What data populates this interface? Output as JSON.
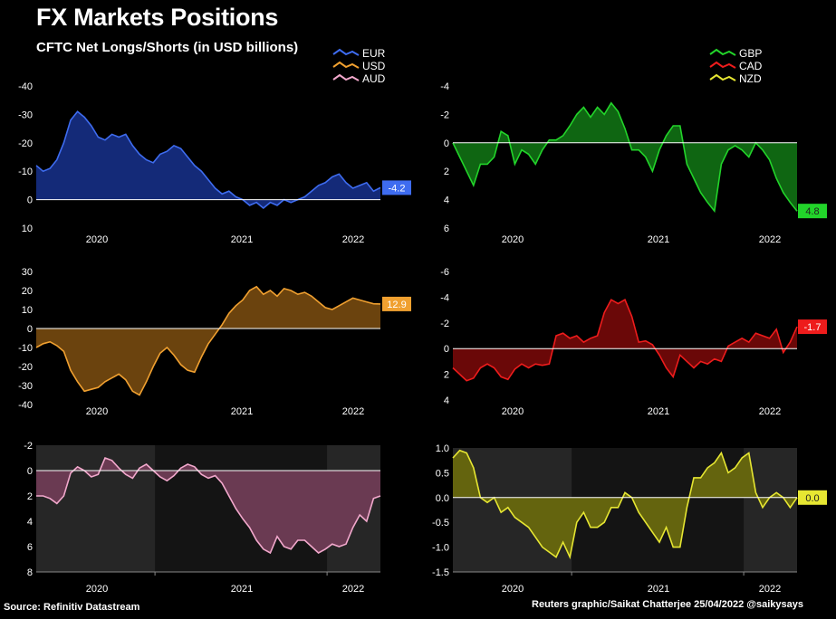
{
  "header": {
    "title": "FX Markets Positions",
    "subtitle": "CFTC Net Longs/Shorts (in USD billions)"
  },
  "footer": {
    "source": "Source: Refinitiv Datastream",
    "credit": "Reuters graphic/Saikat Chatterjee 25/04/2022 @saikysays"
  },
  "chart_data": [
    {
      "type": "area",
      "series_name": "EUR",
      "color": "#3e6cf0",
      "fill": "#142a78",
      "legend": [
        "EUR",
        "USD",
        "AUD"
      ],
      "legend_colors": [
        "#3e6cf0",
        "#f0a030",
        "#f2a8cc"
      ],
      "x_ticks": [
        "2020",
        "2021",
        "2022"
      ],
      "y_range": [
        -40,
        10
      ],
      "y_ticks": [
        -40,
        -30,
        -20,
        -10,
        0,
        10
      ],
      "inverted": true,
      "last_label": "-4.2",
      "shaded": false,
      "x": [
        0,
        0.02,
        0.04,
        0.06,
        0.08,
        0.1,
        0.12,
        0.14,
        0.16,
        0.18,
        0.2,
        0.22,
        0.24,
        0.26,
        0.28,
        0.3,
        0.32,
        0.34,
        0.36,
        0.38,
        0.4,
        0.42,
        0.44,
        0.46,
        0.48,
        0.5,
        0.52,
        0.54,
        0.56,
        0.58,
        0.6,
        0.62,
        0.64,
        0.66,
        0.68,
        0.7,
        0.72,
        0.74,
        0.76,
        0.78,
        0.8,
        0.82,
        0.84,
        0.86,
        0.88,
        0.9,
        0.92,
        0.94,
        0.96,
        0.98,
        1
      ],
      "values": [
        -12,
        -10,
        -11,
        -14,
        -20,
        -28,
        -31,
        -29,
        -26,
        -22,
        -21,
        -23,
        -22,
        -23,
        -19,
        -16,
        -14,
        -13,
        -16,
        -17,
        -19,
        -18,
        -15,
        -12,
        -10,
        -7,
        -4,
        -2,
        -3,
        -1,
        0,
        2,
        1,
        3,
        1,
        2,
        0,
        1,
        0,
        -1,
        -3,
        -5,
        -6,
        -8,
        -9,
        -6,
        -4,
        -5,
        -6,
        -3,
        -4.2
      ]
    },
    {
      "type": "area",
      "series_name": "GBP",
      "color": "#22d42a",
      "fill": "#0f6612",
      "legend": [
        "GBP",
        "CAD",
        "NZD"
      ],
      "legend_colors": [
        "#22d42a",
        "#ee1c1c",
        "#e6e632"
      ],
      "x_ticks": [
        "2020",
        "2021",
        "2022"
      ],
      "y_range": [
        -4,
        6
      ],
      "y_ticks": [
        -4,
        -2,
        0,
        2,
        4,
        6
      ],
      "inverted": true,
      "last_label": "4.8",
      "shaded": false,
      "x": [
        0,
        0.02,
        0.04,
        0.06,
        0.08,
        0.1,
        0.12,
        0.14,
        0.16,
        0.18,
        0.2,
        0.22,
        0.24,
        0.26,
        0.28,
        0.3,
        0.32,
        0.34,
        0.36,
        0.38,
        0.4,
        0.42,
        0.44,
        0.46,
        0.48,
        0.5,
        0.52,
        0.54,
        0.56,
        0.58,
        0.6,
        0.62,
        0.64,
        0.66,
        0.68,
        0.7,
        0.72,
        0.74,
        0.76,
        0.78,
        0.8,
        0.82,
        0.84,
        0.86,
        0.88,
        0.9,
        0.92,
        0.94,
        0.96,
        0.98,
        1
      ],
      "values": [
        0,
        1,
        2,
        3,
        1.5,
        1.5,
        1,
        -0.8,
        -0.5,
        1.5,
        0.5,
        0.8,
        1.5,
        0.5,
        -0.2,
        -0.2,
        -0.5,
        -1.2,
        -2,
        -2.5,
        -1.8,
        -2.5,
        -2,
        -2.8,
        -2.2,
        -1,
        0.5,
        0.5,
        1,
        2,
        0.5,
        -0.5,
        -1.2,
        -1.2,
        1.5,
        2.5,
        3.5,
        4.2,
        4.8,
        1.5,
        0.5,
        0.2,
        0.5,
        1,
        0,
        0.5,
        1.2,
        2.5,
        3.5,
        4.2,
        4.8
      ]
    },
    {
      "type": "area",
      "series_name": "USD",
      "color": "#f0a030",
      "fill": "#6b430e",
      "x_ticks": [
        "2020",
        "2021",
        "2022"
      ],
      "y_range": [
        -40,
        30
      ],
      "y_ticks": [
        30,
        20,
        10,
        0,
        -10,
        -20,
        -30,
        -40
      ],
      "inverted": false,
      "last_label": "12.9",
      "shaded": false,
      "x": [
        0,
        0.02,
        0.04,
        0.06,
        0.08,
        0.1,
        0.12,
        0.14,
        0.16,
        0.18,
        0.2,
        0.22,
        0.24,
        0.26,
        0.28,
        0.3,
        0.32,
        0.34,
        0.36,
        0.38,
        0.4,
        0.42,
        0.44,
        0.46,
        0.48,
        0.5,
        0.52,
        0.54,
        0.56,
        0.58,
        0.6,
        0.62,
        0.64,
        0.66,
        0.68,
        0.7,
        0.72,
        0.74,
        0.76,
        0.78,
        0.8,
        0.82,
        0.84,
        0.86,
        0.88,
        0.9,
        0.92,
        0.94,
        0.96,
        0.98,
        1
      ],
      "values": [
        -10,
        -8,
        -7,
        -9,
        -12,
        -22,
        -28,
        -33,
        -32,
        -31,
        -28,
        -26,
        -24,
        -27,
        -33,
        -35,
        -28,
        -20,
        -13,
        -10,
        -14,
        -19,
        -22,
        -23,
        -15,
        -8,
        -3,
        2,
        8,
        12,
        15,
        20,
        22,
        18,
        20,
        17,
        21,
        20,
        18,
        19,
        17,
        14,
        11,
        10,
        12,
        14,
        16,
        15,
        14,
        13,
        12.9
      ]
    },
    {
      "type": "area",
      "series_name": "CAD",
      "color": "#ee1c1c",
      "fill": "#6a0808",
      "x_ticks": [
        "2020",
        "2021",
        "2022"
      ],
      "y_range": [
        -6,
        4
      ],
      "y_ticks": [
        -6,
        -4,
        -2,
        0,
        2,
        4
      ],
      "inverted": true,
      "last_label": "-1.7",
      "shaded": false,
      "x": [
        0,
        0.02,
        0.04,
        0.06,
        0.08,
        0.1,
        0.12,
        0.14,
        0.16,
        0.18,
        0.2,
        0.22,
        0.24,
        0.26,
        0.28,
        0.3,
        0.32,
        0.34,
        0.36,
        0.38,
        0.4,
        0.42,
        0.44,
        0.46,
        0.48,
        0.5,
        0.52,
        0.54,
        0.56,
        0.58,
        0.6,
        0.62,
        0.64,
        0.66,
        0.68,
        0.7,
        0.72,
        0.74,
        0.76,
        0.78,
        0.8,
        0.82,
        0.84,
        0.86,
        0.88,
        0.9,
        0.92,
        0.94,
        0.96,
        0.98,
        1
      ],
      "values": [
        1.5,
        2,
        2.5,
        2.3,
        1.5,
        1.2,
        1.5,
        2.2,
        2.4,
        1.6,
        1.2,
        1.5,
        1.2,
        1.3,
        1.2,
        -1,
        -1.2,
        -0.8,
        -1,
        -0.5,
        -0.8,
        -1,
        -2.8,
        -3.8,
        -3.5,
        -3.8,
        -2.5,
        -0.5,
        -0.6,
        -0.3,
        0.5,
        1.5,
        2.2,
        0.5,
        1,
        1.5,
        1,
        1.2,
        0.8,
        1,
        -0.2,
        -0.5,
        -0.8,
        -0.5,
        -1.2,
        -1,
        -0.8,
        -1.5,
        0.3,
        -0.5,
        -1.7
      ]
    },
    {
      "type": "area",
      "series_name": "AUD",
      "color": "#f2a8cc",
      "fill": "#6a3a52",
      "x_ticks": [
        "2020",
        "2021",
        "2022"
      ],
      "y_range": [
        -2,
        8
      ],
      "y_ticks": [
        -2,
        0,
        2,
        4,
        6,
        8
      ],
      "inverted": true,
      "last_label": "",
      "shaded": true,
      "x": [
        0,
        0.02,
        0.04,
        0.06,
        0.08,
        0.1,
        0.12,
        0.14,
        0.16,
        0.18,
        0.2,
        0.22,
        0.24,
        0.26,
        0.28,
        0.3,
        0.32,
        0.34,
        0.36,
        0.38,
        0.4,
        0.42,
        0.44,
        0.46,
        0.48,
        0.5,
        0.52,
        0.54,
        0.56,
        0.58,
        0.6,
        0.62,
        0.64,
        0.66,
        0.68,
        0.7,
        0.72,
        0.74,
        0.76,
        0.78,
        0.8,
        0.82,
        0.84,
        0.86,
        0.88,
        0.9,
        0.92,
        0.94,
        0.96,
        0.98,
        1
      ],
      "values": [
        2,
        2,
        2.2,
        2.6,
        2,
        0.2,
        -0.3,
        0,
        0.5,
        0.3,
        -1,
        -0.8,
        -0.2,
        0.3,
        0.6,
        -0.2,
        -0.5,
        0,
        0.5,
        0.8,
        0.4,
        -0.2,
        -0.5,
        -0.3,
        0.3,
        0.6,
        0.4,
        1,
        2,
        3,
        3.8,
        4.5,
        5.5,
        6.2,
        6.5,
        5.2,
        6,
        6.2,
        5.5,
        5.5,
        6,
        6.5,
        6.2,
        5.8,
        6,
        5.8,
        4.5,
        3.5,
        4,
        2.2,
        2
      ]
    },
    {
      "type": "area",
      "series_name": "NZD",
      "color": "#e6e632",
      "fill": "#64640e",
      "x_ticks": [
        "2020",
        "2021",
        "2022"
      ],
      "y_range": [
        -1.5,
        1.0
      ],
      "y_ticks": [
        1.0,
        0.5,
        0.0,
        -0.5,
        -1.0,
        -1.5
      ],
      "inverted": false,
      "last_label": "0.0",
      "shaded": true,
      "x": [
        0,
        0.02,
        0.04,
        0.06,
        0.08,
        0.1,
        0.12,
        0.14,
        0.16,
        0.18,
        0.2,
        0.22,
        0.24,
        0.26,
        0.28,
        0.3,
        0.32,
        0.34,
        0.36,
        0.38,
        0.4,
        0.42,
        0.44,
        0.46,
        0.48,
        0.5,
        0.52,
        0.54,
        0.56,
        0.58,
        0.6,
        0.62,
        0.64,
        0.66,
        0.68,
        0.7,
        0.72,
        0.74,
        0.76,
        0.78,
        0.8,
        0.82,
        0.84,
        0.86,
        0.88,
        0.9,
        0.92,
        0.94,
        0.96,
        0.98,
        1
      ],
      "values": [
        0.8,
        0.95,
        0.9,
        0.6,
        0,
        -0.1,
        0,
        -0.3,
        -0.2,
        -0.4,
        -0.5,
        -0.6,
        -0.8,
        -1,
        -1.1,
        -1.2,
        -0.9,
        -1.2,
        -0.5,
        -0.3,
        -0.6,
        -0.6,
        -0.5,
        -0.2,
        -0.2,
        0.1,
        0,
        -0.3,
        -0.5,
        -0.7,
        -0.9,
        -0.6,
        -1,
        -1,
        -0.2,
        0.4,
        0.4,
        0.6,
        0.7,
        0.9,
        0.5,
        0.6,
        0.8,
        0.9,
        0.1,
        -0.2,
        0,
        0.1,
        0,
        -0.2,
        0.0
      ]
    }
  ]
}
